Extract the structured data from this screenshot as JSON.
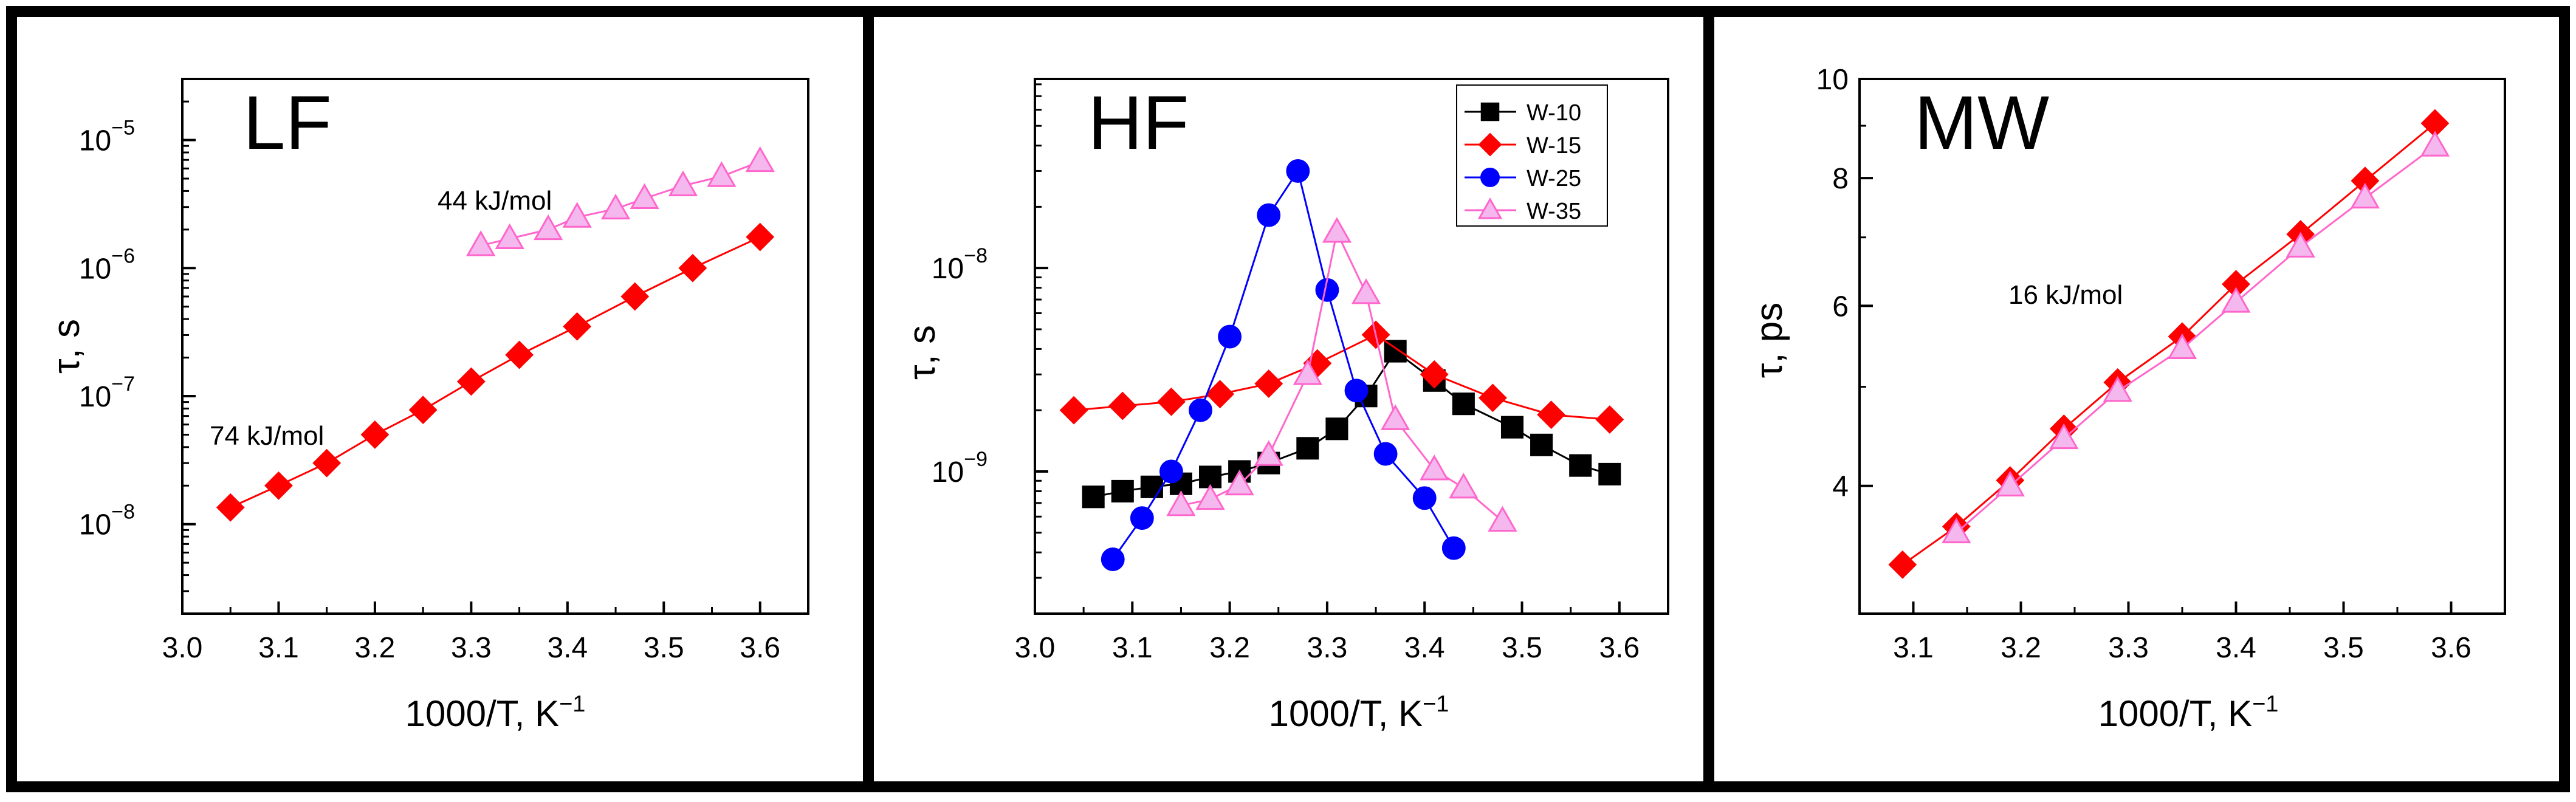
{
  "chart_data": [
    {
      "type": "scatter",
      "title": "LF",
      "xlabel": "1000/T, K",
      "xlabel_sup": "−1",
      "ylabel": "τ, s",
      "yscale": "log",
      "xlim": [
        3.0,
        3.65
      ],
      "ylim": [
        2e-09,
        3e-05
      ],
      "x_ticks": [
        3.0,
        3.1,
        3.2,
        3.3,
        3.4,
        3.5,
        3.6
      ],
      "x_tick_labels": [
        "3.0",
        "3.1",
        "3.2",
        "3.3",
        "3.4",
        "3.5",
        "3.6"
      ],
      "y_ticks": [
        1e-08,
        1e-07,
        1e-06,
        1e-05
      ],
      "y_tick_labels": [
        {
          "base": "10",
          "exp": "−8"
        },
        {
          "base": "10",
          "exp": "−7"
        },
        {
          "base": "10",
          "exp": "−6"
        },
        {
          "base": "10",
          "exp": "−5"
        }
      ],
      "series": [
        {
          "name": "W-15",
          "color": "#ff0000",
          "marker": "diamond",
          "x": [
            3.05,
            3.1,
            3.15,
            3.2,
            3.25,
            3.3,
            3.35,
            3.41,
            3.47,
            3.53,
            3.6
          ],
          "y": [
            1.35e-08,
            2e-08,
            3e-08,
            5e-08,
            7.8e-08,
            1.3e-07,
            2.1e-07,
            3.5e-07,
            6e-07,
            1e-06,
            1.75e-06
          ]
        },
        {
          "name": "W-35",
          "color": "#ff66cc",
          "fill": "#f5b8ee",
          "marker": "triangle",
          "x": [
            3.31,
            3.34,
            3.38,
            3.41,
            3.45,
            3.48,
            3.52,
            3.56,
            3.6
          ],
          "y": [
            1.5e-06,
            1.7e-06,
            2e-06,
            2.5e-06,
            2.9e-06,
            3.5e-06,
            4.4e-06,
            5.2e-06,
            6.8e-06
          ]
        }
      ],
      "annotations": [
        "44 kJ/mol",
        "74 kJ/mol"
      ]
    },
    {
      "type": "scatter",
      "title": "HF",
      "xlabel": "1000/T, K",
      "xlabel_sup": "−1",
      "ylabel": "τ, s",
      "yscale": "log",
      "xlim": [
        3.0,
        3.65
      ],
      "ylim": [
        2e-10,
        8.5e-08
      ],
      "x_ticks": [
        3.0,
        3.1,
        3.2,
        3.3,
        3.4,
        3.5,
        3.6
      ],
      "x_tick_labels": [
        "3.0",
        "3.1",
        "3.2",
        "3.3",
        "3.4",
        "3.5",
        "3.6"
      ],
      "y_ticks": [
        1e-09,
        1e-08
      ],
      "y_tick_labels": [
        {
          "base": "10",
          "exp": "−9"
        },
        {
          "base": "10",
          "exp": "−8"
        }
      ],
      "legend_position": "top-right",
      "series": [
        {
          "name": "W-10",
          "color": "#000000",
          "marker": "square",
          "x": [
            3.06,
            3.09,
            3.12,
            3.15,
            3.18,
            3.21,
            3.24,
            3.28,
            3.31,
            3.34,
            3.37,
            3.41,
            3.44,
            3.49,
            3.52,
            3.56,
            3.59
          ],
          "y": [
            7.5e-10,
            8e-10,
            8.4e-10,
            8.7e-10,
            9.4e-10,
            1e-09,
            1.1e-09,
            1.3e-09,
            1.62e-09,
            2.35e-09,
            3.9e-09,
            2.8e-09,
            2.15e-09,
            1.65e-09,
            1.35e-09,
            1.07e-09,
            9.7e-10
          ]
        },
        {
          "name": "W-15",
          "color": "#ff0000",
          "marker": "diamond",
          "x": [
            3.04,
            3.09,
            3.14,
            3.19,
            3.24,
            3.29,
            3.35,
            3.41,
            3.47,
            3.53,
            3.59
          ],
          "y": [
            2e-09,
            2.1e-09,
            2.2e-09,
            2.4e-09,
            2.7e-09,
            3.4e-09,
            4.7e-09,
            3e-09,
            2.3e-09,
            1.9e-09,
            1.8e-09
          ]
        },
        {
          "name": "W-25",
          "color": "#0000ff",
          "marker": "circle",
          "x": [
            3.08,
            3.11,
            3.14,
            3.17,
            3.2,
            3.24,
            3.27,
            3.3,
            3.33,
            3.36,
            3.4,
            3.43
          ],
          "y": [
            3.7e-10,
            5.9e-10,
            1e-09,
            2e-09,
            4.6e-09,
            1.82e-08,
            3e-08,
            7.8e-09,
            2.5e-09,
            1.22e-09,
            7.4e-10,
            4.2e-10
          ]
        },
        {
          "name": "W-35",
          "color": "#ff66cc",
          "fill": "#f5b8ee",
          "marker": "triangle",
          "x": [
            3.15,
            3.18,
            3.21,
            3.24,
            3.28,
            3.31,
            3.34,
            3.37,
            3.41,
            3.44,
            3.48
          ],
          "y": [
            6.8e-10,
            7.3e-10,
            8.6e-10,
            1.2e-09,
            3e-09,
            1.5e-08,
            7.5e-09,
            1.8e-09,
            1.02e-09,
            8.3e-10,
            5.7e-10
          ]
        }
      ]
    },
    {
      "type": "scatter",
      "title": "MW",
      "xlabel": "1000/T, K",
      "xlabel_sup": "−1",
      "ylabel": "τ, ps",
      "yscale": "log",
      "xlim": [
        3.05,
        3.65
      ],
      "ylim": [
        3.0,
        10.0
      ],
      "x_ticks": [
        3.1,
        3.2,
        3.3,
        3.4,
        3.5,
        3.6
      ],
      "x_tick_labels": [
        "3.1",
        "3.2",
        "3.3",
        "3.4",
        "3.5",
        "3.6"
      ],
      "y_ticks": [
        4,
        6,
        8,
        10
      ],
      "y_tick_labels": [
        "4",
        "6",
        "8",
        "10"
      ],
      "series": [
        {
          "name": "W-15",
          "color": "#ff0000",
          "marker": "diamond",
          "x": [
            3.09,
            3.14,
            3.19,
            3.24,
            3.29,
            3.35,
            3.4,
            3.46,
            3.52,
            3.585
          ],
          "y": [
            3.35,
            3.65,
            4.05,
            4.55,
            5.05,
            5.6,
            6.3,
            7.05,
            7.95,
            9.05
          ]
        },
        {
          "name": "W-35",
          "color": "#ff66cc",
          "fill": "#f5b8ee",
          "marker": "triangle",
          "x": [
            3.14,
            3.19,
            3.24,
            3.29,
            3.35,
            3.4,
            3.46,
            3.52,
            3.585
          ],
          "y": [
            3.6,
            4.0,
            4.45,
            4.95,
            5.45,
            6.05,
            6.85,
            7.65,
            8.6
          ]
        }
      ],
      "annotations": [
        "16 kJ/mol"
      ]
    }
  ]
}
